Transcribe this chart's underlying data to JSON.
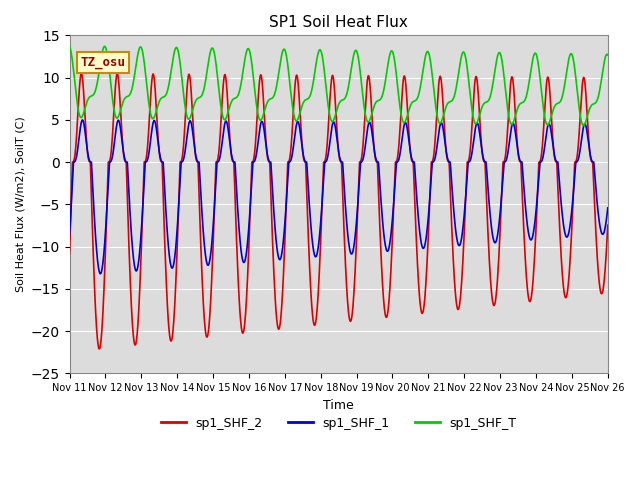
{
  "title": "SP1 Soil Heat Flux",
  "xlabel": "Time",
  "ylabel": "Soil Heat Flux (W/m2), SoilT (C)",
  "ylim": [
    -25,
    15
  ],
  "background_color": "#dcdcdc",
  "grid_color": "white",
  "tz_label": "TZ_osu",
  "legend_entries": [
    "sp1_SHF_2",
    "sp1_SHF_1",
    "sp1_SHF_T"
  ],
  "line_colors": [
    "#dd0000",
    "#0000dd",
    "#00cc00"
  ],
  "x_tick_labels": [
    "Nov 11",
    "Nov 12",
    "Nov 13",
    "Nov 14",
    "Nov 15",
    "Nov 16",
    "Nov 17",
    "Nov 18",
    "Nov 19",
    "Nov 20",
    "Nov 21",
    "Nov 22",
    "Nov 23",
    "Nov 24",
    "Nov 25",
    "Nov 26"
  ],
  "yticks": [
    -25,
    -20,
    -15,
    -10,
    -5,
    0,
    5,
    10,
    15
  ]
}
